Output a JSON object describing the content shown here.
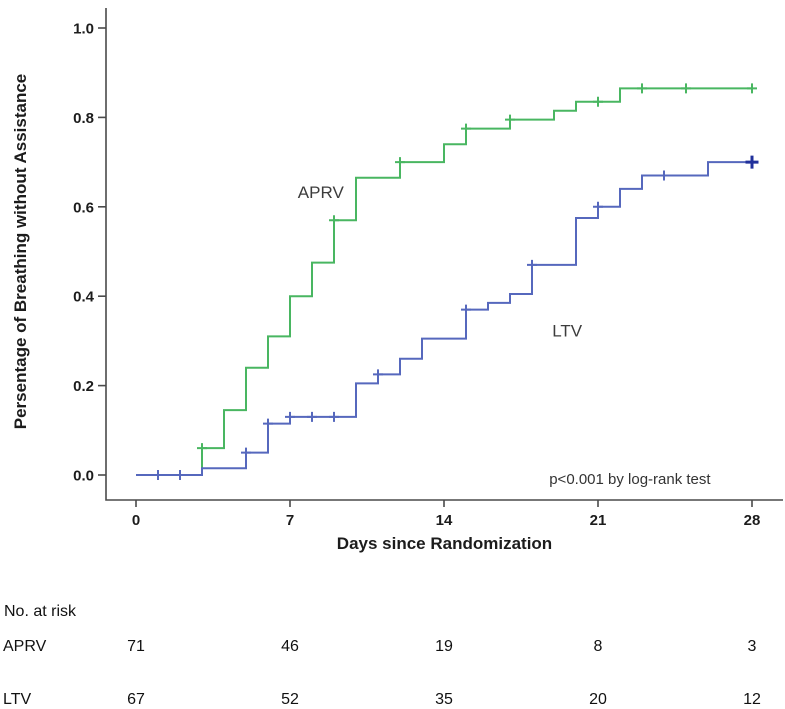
{
  "chart_data": {
    "type": "line",
    "subtype": "kaplan-meier-step",
    "title": "",
    "xlabel": "Days since Randomization",
    "ylabel": "Persentage of Breathing without Assistance",
    "annotation": "p<0.001 by log-rank test",
    "annotation_pos": {
      "day": 22.45,
      "value": -0.02
    },
    "xlim": [
      0,
      28
    ],
    "ylim": [
      0.0,
      1.0
    ],
    "grid": false,
    "x_ticks": [
      0,
      7,
      14,
      21,
      28
    ],
    "x_tick_labels": [
      "0",
      "7",
      "14",
      "21",
      "28"
    ],
    "y_ticks": [
      0.0,
      0.2,
      0.4,
      0.6,
      0.8,
      1.0
    ],
    "y_tick_labels": [
      "0.0",
      "0.2",
      "0.4",
      "0.6",
      "0.8",
      "1.0"
    ],
    "series": [
      {
        "name": "APRV",
        "color": "#49b661",
        "label_pos": {
          "day": 8.4,
          "value": 0.62
        },
        "start": [
          0,
          0
        ],
        "steps": [
          [
            3,
            0.06
          ],
          [
            4,
            0.145
          ],
          [
            5,
            0.24
          ],
          [
            6,
            0.31
          ],
          [
            7,
            0.4
          ],
          [
            8,
            0.475
          ],
          [
            9,
            0.57
          ],
          [
            10,
            0.665
          ],
          [
            12,
            0.7
          ],
          [
            14,
            0.74
          ],
          [
            15,
            0.775
          ],
          [
            17,
            0.795
          ],
          [
            19,
            0.815
          ],
          [
            20,
            0.835
          ],
          [
            22,
            0.865
          ]
        ],
        "end_day": 28,
        "censors": [
          [
            3,
            0.06
          ],
          [
            9,
            0.57
          ],
          [
            12,
            0.7
          ],
          [
            15,
            0.775
          ],
          [
            17,
            0.795
          ],
          [
            21,
            0.835
          ],
          [
            23,
            0.865
          ],
          [
            25,
            0.865
          ],
          [
            28,
            0.865
          ]
        ]
      },
      {
        "name": "LTV",
        "color": "#5668bd",
        "end_marker_color": "#20309b",
        "label_pos": {
          "day": 19.6,
          "value": 0.31
        },
        "start": [
          0,
          0
        ],
        "steps": [
          [
            3,
            0.015
          ],
          [
            5,
            0.05
          ],
          [
            6,
            0.115
          ],
          [
            7,
            0.13
          ],
          [
            10,
            0.205
          ],
          [
            11,
            0.225
          ],
          [
            12,
            0.26
          ],
          [
            13,
            0.305
          ],
          [
            15,
            0.37
          ],
          [
            16,
            0.385
          ],
          [
            17,
            0.405
          ],
          [
            18,
            0.47
          ],
          [
            20,
            0.575
          ],
          [
            21,
            0.6
          ],
          [
            22,
            0.64
          ],
          [
            23,
            0.67
          ],
          [
            26,
            0.7
          ]
        ],
        "end_day": 28,
        "censors": [
          [
            1,
            0,
            0
          ],
          [
            2,
            0,
            0
          ],
          [
            5,
            0.05,
            0
          ],
          [
            6,
            0.115,
            0
          ],
          [
            7,
            0.13,
            0
          ],
          [
            8,
            0.13,
            0
          ],
          [
            9,
            0.13,
            0
          ],
          [
            11,
            0.225,
            0
          ],
          [
            15,
            0.37,
            0
          ],
          [
            18,
            0.47,
            0
          ],
          [
            21,
            0.6,
            0
          ],
          [
            24,
            0.67,
            0
          ],
          [
            28,
            0.7,
            1
          ]
        ]
      }
    ]
  },
  "risk_table": {
    "title": "No. at risk",
    "days": [
      0,
      7,
      14,
      21,
      28
    ],
    "rows": [
      {
        "label": "APRV",
        "counts": [
          "71",
          "46",
          "19",
          "8",
          "3"
        ]
      },
      {
        "label": "LTV",
        "counts": [
          "67",
          "52",
          "35",
          "20",
          "12"
        ]
      }
    ]
  }
}
